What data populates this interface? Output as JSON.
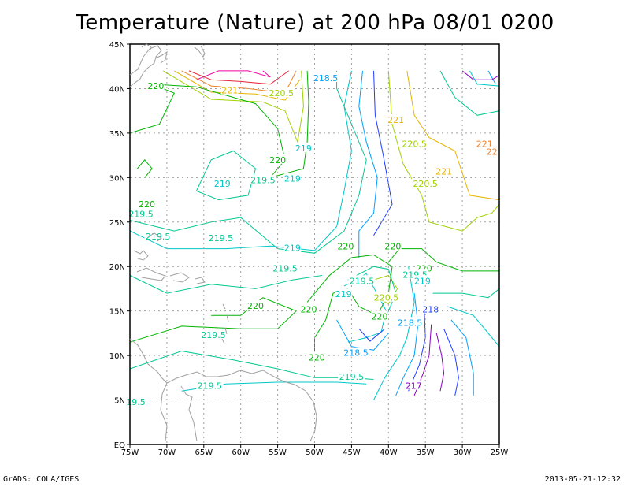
{
  "title": "Temperature (Nature) at 200 hPa 08/01 0200",
  "footer": {
    "credit": "GrADS: COLA/IGES",
    "timestamp": "2013-05-21-12:32"
  },
  "axes": {
    "lon_ticks": [
      "75W",
      "70W",
      "65W",
      "60W",
      "55W",
      "50W",
      "45W",
      "40W",
      "35W",
      "30W",
      "25W"
    ],
    "lat_ticks": [
      "EQ",
      "5N",
      "10N",
      "15N",
      "20N",
      "25N",
      "30N",
      "35N",
      "40N",
      "45N"
    ],
    "lon_range": [
      -75,
      -25
    ],
    "lat_range": [
      0,
      45
    ],
    "grid": "dotted"
  },
  "colors": {
    "coast": "#a0a0a0",
    "grid": "#a0a0a0",
    "c217": "#8c00c8",
    "c218": "#1e3cff",
    "c218_5": "#00a0ff",
    "c219": "#00c8c8",
    "c219_5": "#00c890",
    "c220": "#00b400",
    "c220_5": "#a0d200",
    "c221": "#e6b400",
    "c221_5": "#f08228",
    "c222": "#e6283c",
    "c223": "#f000a0"
  },
  "contour_labels": [
    {
      "text": "220",
      "lon": -71.5,
      "lat": 40.3,
      "color": "c220"
    },
    {
      "text": "221",
      "lon": -61.5,
      "lat": 39.8,
      "color": "c221"
    },
    {
      "text": "220.5",
      "lon": -54.5,
      "lat": 39.5,
      "color": "c220_5"
    },
    {
      "text": "218.5",
      "lon": -48.5,
      "lat": 41.2,
      "color": "c218_5"
    },
    {
      "text": "221",
      "lon": -39.0,
      "lat": 36.5,
      "color": "c221"
    },
    {
      "text": "220.5",
      "lon": -36.5,
      "lat": 33.8,
      "color": "c220_5"
    },
    {
      "text": "221",
      "lon": -27.0,
      "lat": 33.8,
      "color": "c221_5"
    },
    {
      "text": "22",
      "lon": -26.0,
      "lat": 32.9,
      "color": "c221_5"
    },
    {
      "text": "219",
      "lon": -51.5,
      "lat": 33.3,
      "color": "c219"
    },
    {
      "text": "220",
      "lon": -55.0,
      "lat": 32.0,
      "color": "c220"
    },
    {
      "text": "221",
      "lon": -32.5,
      "lat": 30.7,
      "color": "c221"
    },
    {
      "text": "220.5",
      "lon": -35.0,
      "lat": 29.3,
      "color": "c220_5"
    },
    {
      "text": "219",
      "lon": -62.5,
      "lat": 29.3,
      "color": "c219"
    },
    {
      "text": "219.5",
      "lon": -57.0,
      "lat": 29.7,
      "color": "c219_5"
    },
    {
      "text": "219",
      "lon": -53.0,
      "lat": 29.9,
      "color": "c219"
    },
    {
      "text": "220",
      "lon": -72.7,
      "lat": 27.0,
      "color": "c220"
    },
    {
      "text": "219.5",
      "lon": -73.5,
      "lat": 25.9,
      "color": "c219_5"
    },
    {
      "text": "219.5",
      "lon": -71.2,
      "lat": 23.4,
      "color": "c219_5"
    },
    {
      "text": "219.5",
      "lon": -62.7,
      "lat": 23.2,
      "color": "c219_5"
    },
    {
      "text": "219",
      "lon": -53.0,
      "lat": 22.1,
      "color": "c219"
    },
    {
      "text": "220",
      "lon": -45.8,
      "lat": 22.3,
      "color": "c220"
    },
    {
      "text": "220",
      "lon": -39.4,
      "lat": 22.3,
      "color": "c220"
    },
    {
      "text": "219.5",
      "lon": -54.0,
      "lat": 19.8,
      "color": "c219_5"
    },
    {
      "text": "220",
      "lon": -35.2,
      "lat": 19.8,
      "color": "c220"
    },
    {
      "text": "219.5",
      "lon": -36.4,
      "lat": 19.1,
      "color": "c219_5"
    },
    {
      "text": "219",
      "lon": -35.4,
      "lat": 18.4,
      "color": "c219"
    },
    {
      "text": "219.5",
      "lon": -43.6,
      "lat": 18.4,
      "color": "c219_5"
    },
    {
      "text": "219",
      "lon": -46.1,
      "lat": 16.9,
      "color": "c219"
    },
    {
      "text": "220.5",
      "lon": -40.3,
      "lat": 16.5,
      "color": "c220_5"
    },
    {
      "text": "220",
      "lon": -58.0,
      "lat": 15.6,
      "color": "c220"
    },
    {
      "text": "220",
      "lon": -50.8,
      "lat": 15.2,
      "color": "c220"
    },
    {
      "text": "218",
      "lon": -34.3,
      "lat": 15.2,
      "color": "c218"
    },
    {
      "text": "220",
      "lon": -41.2,
      "lat": 14.4,
      "color": "c220"
    },
    {
      "text": "218.5",
      "lon": -37.1,
      "lat": 13.7,
      "color": "c218_5"
    },
    {
      "text": "219.5",
      "lon": -63.7,
      "lat": 12.3,
      "color": "c219_5"
    },
    {
      "text": "218.5",
      "lon": -44.4,
      "lat": 10.3,
      "color": "c218_5"
    },
    {
      "text": "220",
      "lon": -49.7,
      "lat": 9.8,
      "color": "c220"
    },
    {
      "text": "219.5",
      "lon": -45.0,
      "lat": 7.6,
      "color": "c219_5"
    },
    {
      "text": "219.5",
      "lon": -64.2,
      "lat": 6.6,
      "color": "c219_5"
    },
    {
      "text": "217",
      "lon": -36.6,
      "lat": 6.6,
      "color": "c217"
    },
    {
      "text": "19.5",
      "lon": -74.2,
      "lat": 4.8,
      "color": "c219_5"
    }
  ]
}
